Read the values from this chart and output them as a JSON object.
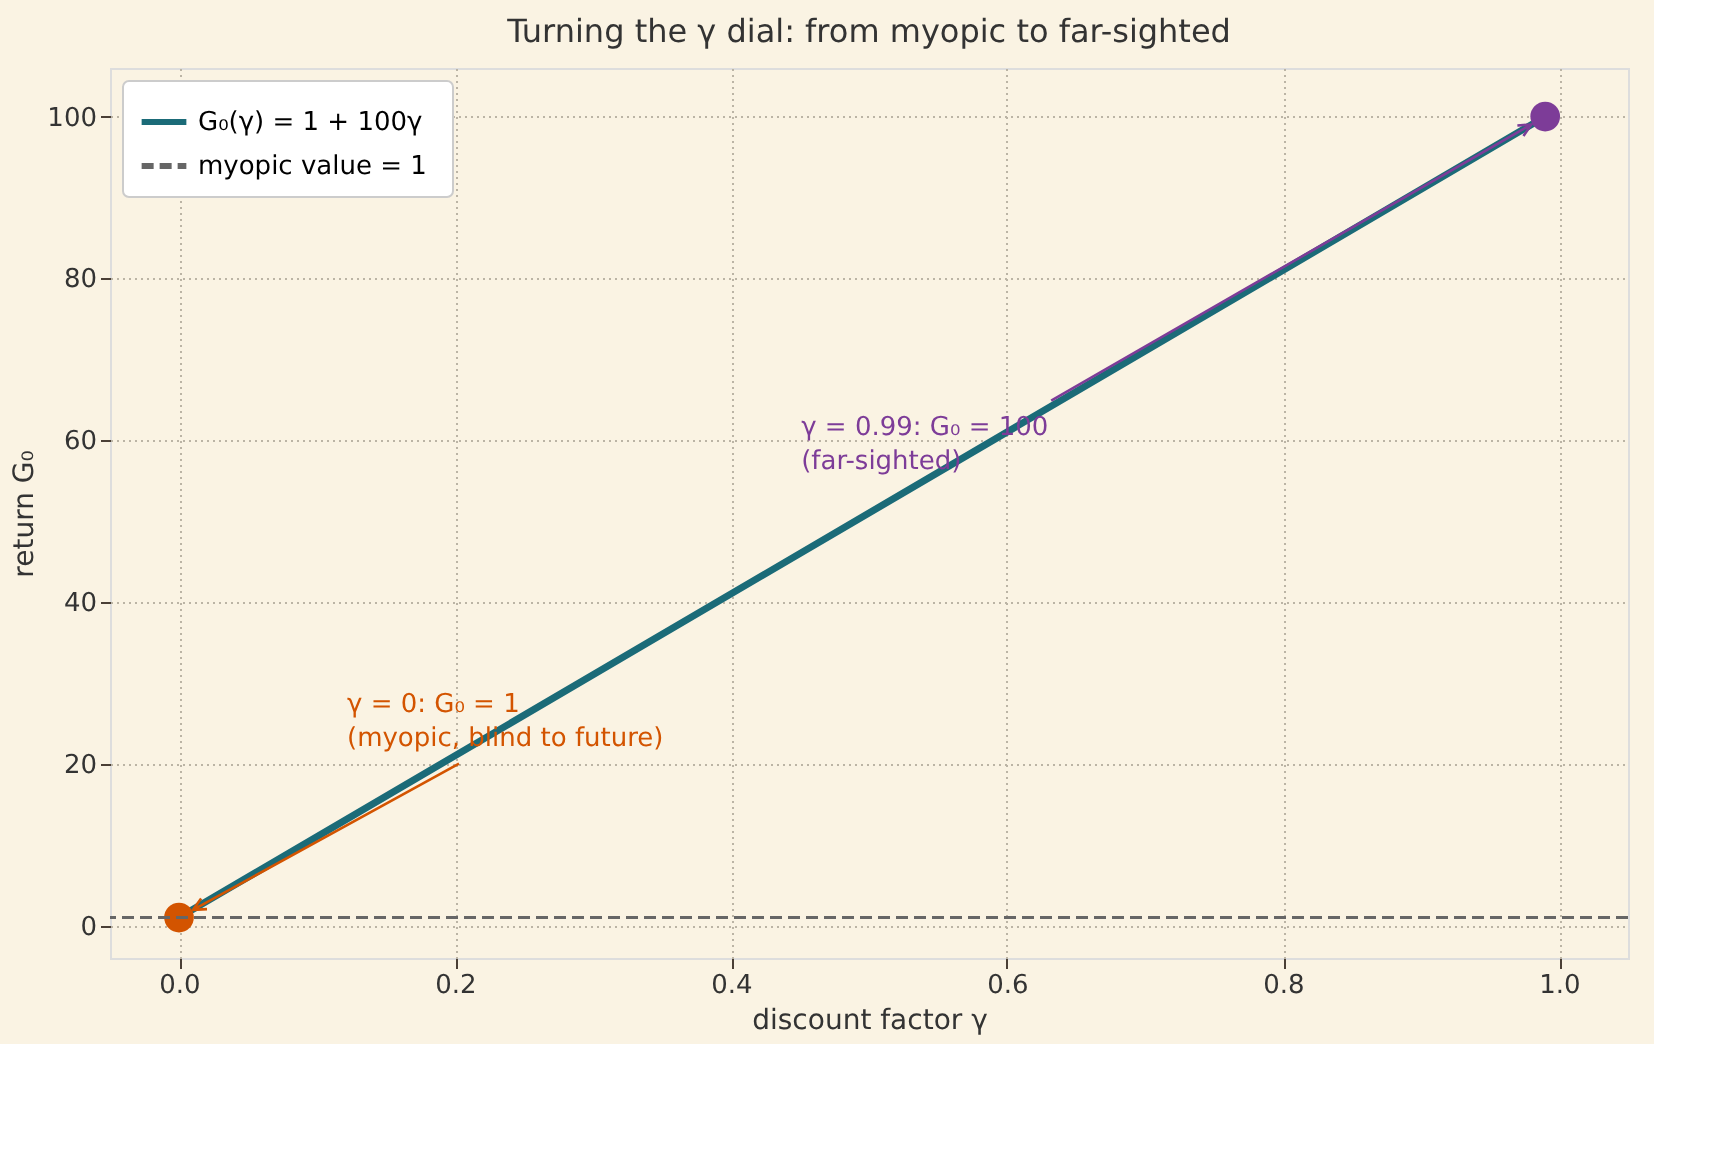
{
  "chart_data": {
    "type": "line",
    "title": "Turning the γ dial: from myopic to far-sighted",
    "xlabel": "discount factor  γ",
    "ylabel": "return  G₀",
    "series": [
      {
        "name": "G₀(γ) = 1 + 100γ",
        "color": "#1b6b78",
        "values": [
          1,
          100
        ]
      },
      {
        "type": "scatter",
        "colors": [
          "#d35400",
          "#7d3c98"
        ],
        "values": [
          1,
          100
        ],
        "marker": "circle"
      }
    ],
    "x": [
      0,
      0.99
    ],
    "ref_lines": [
      {
        "axis": "y",
        "value": 1,
        "label": "myopic value  = 1",
        "color": "#666666",
        "line_style": "dashed"
      }
    ],
    "annotations": [
      {
        "text": "γ = 0: G₀ = 1\n(myopic, blind to future)",
        "x": 0,
        "y": 1
      },
      {
        "text": "γ = 0.99: G₀ = 100\n(far-sighted)",
        "x": 0.99,
        "y": 100
      }
    ],
    "xlim": [
      -0.05,
      1.05
    ],
    "ylim": [
      -4,
      106
    ],
    "xticks": [
      {
        "value": 0,
        "label": "0.0"
      },
      0.2,
      0.4,
      0.6,
      0.8,
      {
        "value": 1,
        "label": "1.0"
      }
    ],
    "yticks": [
      0,
      20,
      40,
      60,
      80,
      100
    ],
    "grid": true,
    "legend": "top left"
  }
}
